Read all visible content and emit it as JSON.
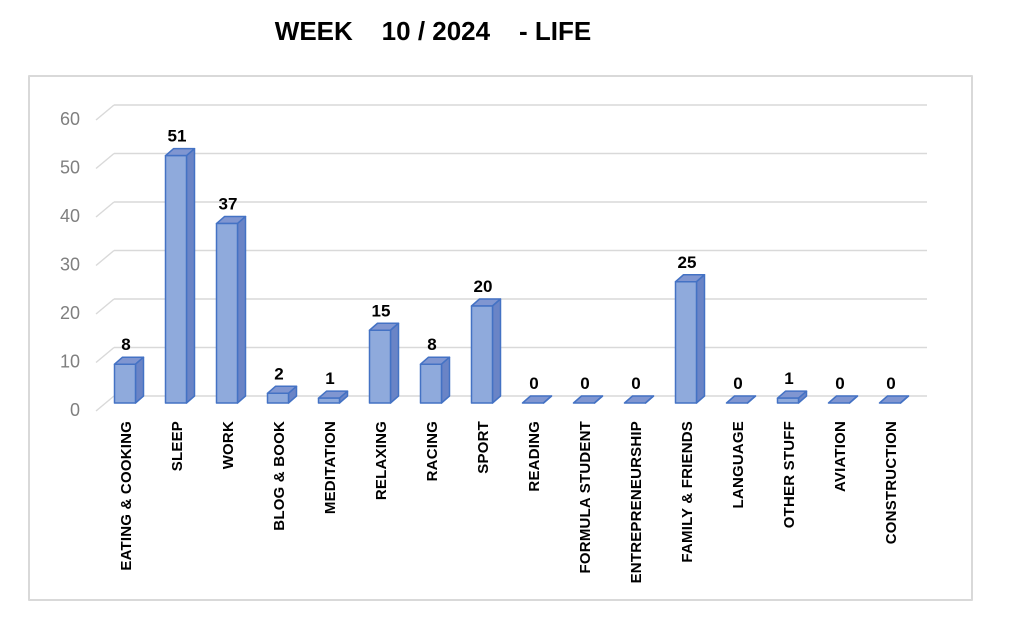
{
  "chart_data": {
    "type": "bar",
    "style": "3d-column",
    "title": "WEEK    10 / 2024    - LIFE",
    "xlabel": "",
    "ylabel": "",
    "categories": [
      "EATING & COOKING",
      "SLEEP",
      "WORK",
      "BLOG & BOOK",
      "MEDITATION",
      "RELAXING",
      "RACING",
      "SPORT",
      "READING",
      "FORMULA STUDENT",
      "ENTREPRENEURSHIP",
      "FAMILY & FRIENDS",
      "LANGUAGE",
      "OTHER STUFF",
      "AVIATION",
      "CONSTRUCTION"
    ],
    "values": [
      8,
      51,
      37,
      2,
      1,
      15,
      8,
      20,
      0,
      0,
      0,
      25,
      0,
      1,
      0,
      0
    ],
    "ylim": [
      0,
      60
    ],
    "yticks": [
      0,
      10,
      20,
      30,
      40,
      50,
      60
    ],
    "grid": true,
    "legend": false,
    "data_labels": true,
    "colors": {
      "bar_front": "#8FAADC",
      "bar_top": "#8096D1",
      "bar_side": "#6A84C6",
      "bar_border": "#4472C4",
      "gridline": "#D9D9D9",
      "axis_label": "#7F7F7F",
      "data_label": "#000000",
      "category_label": "#000000",
      "title_color": "#000000",
      "chart_border": "#D9D9D9",
      "background": "#FFFFFF"
    }
  }
}
